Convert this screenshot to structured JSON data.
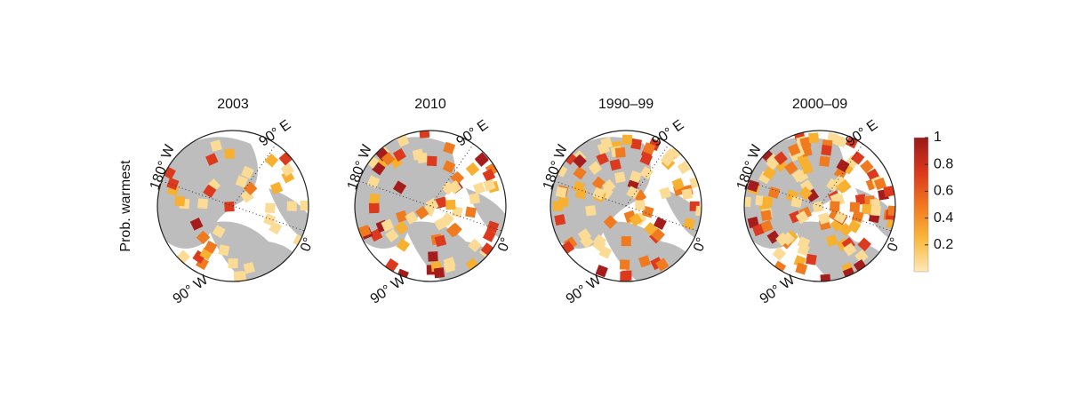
{
  "y_label": "Prob. warmest",
  "panels": [
    {
      "title": "2003",
      "labels": {
        "east": "90° E",
        "dateline": "180° W",
        "west": "90° W",
        "zero": "0°"
      }
    },
    {
      "title": "2010",
      "labels": {
        "east": "90° E",
        "dateline": "180° W",
        "west": "90° W",
        "zero": "0°"
      }
    },
    {
      "title": "1990–99",
      "labels": {
        "east": "90° E",
        "dateline": "180° W",
        "west": "90° W",
        "zero": "0°"
      }
    },
    {
      "title": "2000–09",
      "labels": {
        "east": "90° E",
        "dateline": "180° W",
        "west": "90° W",
        "zero": "0°"
      }
    }
  ],
  "colorbar": {
    "lim": [
      0,
      1
    ],
    "ticks": [
      0.2,
      0.4,
      0.6,
      0.8,
      1
    ]
  }
}
